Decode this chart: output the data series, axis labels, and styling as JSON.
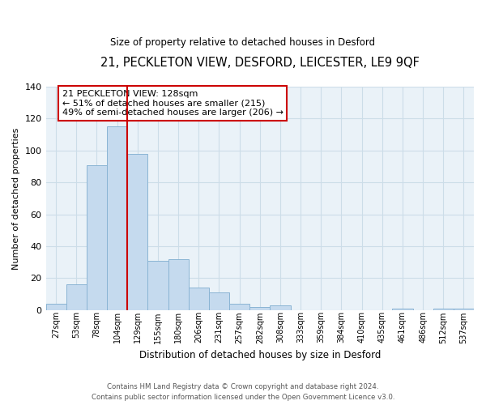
{
  "title": "21, PECKLETON VIEW, DESFORD, LEICESTER, LE9 9QF",
  "subtitle": "Size of property relative to detached houses in Desford",
  "xlabel": "Distribution of detached houses by size in Desford",
  "ylabel": "Number of detached properties",
  "bar_labels": [
    "27sqm",
    "53sqm",
    "78sqm",
    "104sqm",
    "129sqm",
    "155sqm",
    "180sqm",
    "206sqm",
    "231sqm",
    "257sqm",
    "282sqm",
    "308sqm",
    "333sqm",
    "359sqm",
    "384sqm",
    "410sqm",
    "435sqm",
    "461sqm",
    "486sqm",
    "512sqm",
    "537sqm"
  ],
  "bar_values": [
    4,
    16,
    91,
    115,
    98,
    31,
    32,
    14,
    11,
    4,
    2,
    3,
    0,
    0,
    0,
    0,
    0,
    1,
    0,
    1,
    1
  ],
  "bar_color": "#c5daee",
  "bar_edge_color": "#8ab4d4",
  "vline_x": 4,
  "vline_color": "#cc0000",
  "annotation_text": "21 PECKLETON VIEW: 128sqm\n← 51% of detached houses are smaller (215)\n49% of semi-detached houses are larger (206) →",
  "annotation_box_edge_color": "#cc0000",
  "ylim": [
    0,
    140
  ],
  "yticks": [
    0,
    20,
    40,
    60,
    80,
    100,
    120,
    140
  ],
  "footer_line1": "Contains HM Land Registry data © Crown copyright and database right 2024.",
  "footer_line2": "Contains public sector information licensed under the Open Government Licence v3.0.",
  "grid_color": "#ccdde8",
  "background_color": "#ffffff",
  "plot_bg_color": "#eaf2f8",
  "title_fontsize": 10.5,
  "subtitle_fontsize": 8.5
}
